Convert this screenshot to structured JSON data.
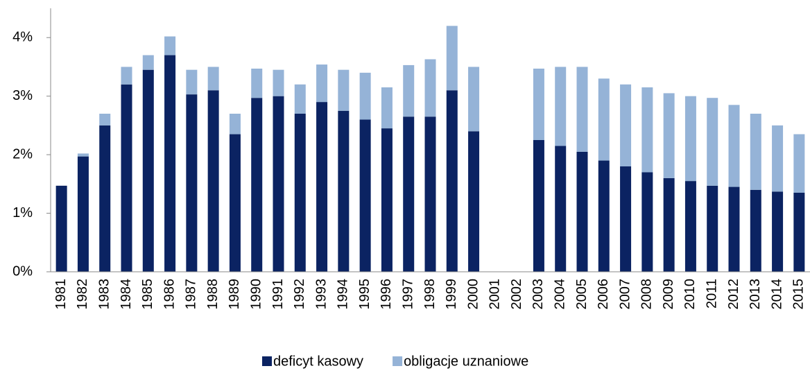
{
  "chart_data": {
    "type": "stacked_bar",
    "categories": [
      "1981",
      "1982",
      "1983",
      "1984",
      "1985",
      "1986",
      "1987",
      "1988",
      "1989",
      "1990",
      "1991",
      "1992",
      "1993",
      "1994",
      "1995",
      "1996",
      "1997",
      "1998",
      "1999",
      "2000",
      "2001",
      "2002",
      "2003",
      "2004",
      "2005",
      "2006",
      "2007",
      "2008",
      "2009",
      "2010",
      "2011",
      "2012",
      "2013",
      "2014",
      "2015"
    ],
    "series": [
      {
        "name": "deficyt kasowy",
        "color": "#0b2362",
        "values": [
          1.47,
          1.97,
          2.5,
          3.2,
          3.45,
          3.7,
          3.03,
          3.1,
          2.35,
          2.97,
          3.0,
          2.7,
          2.9,
          2.75,
          2.6,
          2.45,
          2.65,
          2.65,
          3.1,
          2.4,
          null,
          null,
          2.25,
          2.15,
          2.05,
          1.9,
          1.8,
          1.7,
          1.6,
          1.55,
          1.47,
          1.45,
          1.4,
          1.37,
          1.35
        ]
      },
      {
        "name": "obligacje uznaniowe",
        "color": "#95b3d7",
        "values": [
          0,
          0.05,
          0.2,
          0.3,
          0.25,
          0.32,
          0.42,
          0.4,
          0.35,
          0.5,
          0.45,
          0.5,
          0.64,
          0.7,
          0.8,
          0.7,
          0.88,
          0.98,
          1.1,
          1.1,
          null,
          null,
          1.22,
          1.35,
          1.45,
          1.4,
          1.4,
          1.45,
          1.45,
          1.45,
          1.5,
          1.4,
          1.3,
          1.13,
          1.0
        ]
      }
    ],
    "ylim": [
      0,
      4.5
    ],
    "yticks": [
      {
        "value": 0,
        "label": "0%"
      },
      {
        "value": 1,
        "label": "1%"
      },
      {
        "value": 2,
        "label": "2%"
      },
      {
        "value": 3,
        "label": "3%"
      },
      {
        "value": 4,
        "label": "4%"
      }
    ],
    "legend": "bottom"
  }
}
